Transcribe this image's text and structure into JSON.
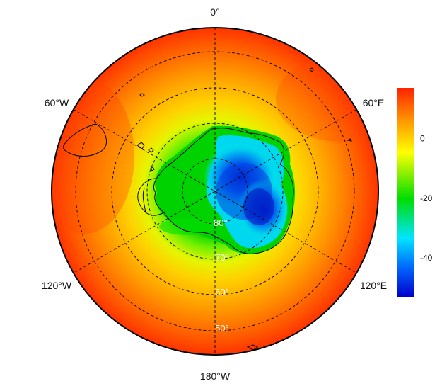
{
  "map": {
    "projection": "south-polar-stereographic",
    "longitude_labels": {
      "top": "0°",
      "upper_left": "60°W",
      "upper_right": "60°E",
      "lower_left": "120°W",
      "lower_right": "120°E",
      "bottom": "180°W"
    },
    "latitude_labels": [
      "80°",
      "70°",
      "60°",
      "50°"
    ],
    "colors": {
      "coastline": "#000000",
      "graticule": "#000000",
      "boundary": "#000000"
    }
  },
  "colorbar": {
    "ticks": [
      "0",
      "-20",
      "-40"
    ],
    "tick_values": [
      0,
      -20,
      -40
    ],
    "range": [
      -53,
      17
    ],
    "colormap": [
      "#0000cc",
      "#0066ff",
      "#00e5ff",
      "#00dd00",
      "#ffff00",
      "#ff9900",
      "#ff2200"
    ]
  }
}
